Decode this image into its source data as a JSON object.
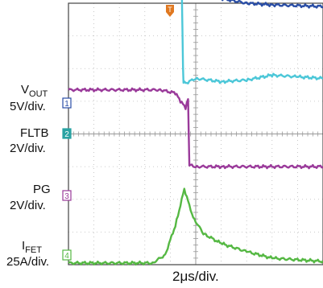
{
  "chart_data": {
    "type": "line",
    "xlabel": "2μs/div.",
    "grid": true,
    "x_divisions": 10,
    "y_divisions": 8,
    "trigger_marker": "T",
    "channels": [
      {
        "id": "1",
        "name_main": "V",
        "name_sub": "OUT",
        "scale": "5V/div.",
        "color": "#2a4ea6",
        "marker_color": "#2a4ea6",
        "x_div": [
          0,
          4.0,
          4.3,
          4.6,
          5.0,
          5.5,
          6.0,
          7.0,
          8.0,
          10.0
        ],
        "y_div": [
          7.4,
          7.35,
          6.6,
          5.8,
          5.0,
          4.4,
          4.15,
          4.0,
          3.95,
          3.9
        ]
      },
      {
        "id": "1b",
        "name_main": "",
        "name_sub": "",
        "scale": "",
        "color": "#4cc7d8",
        "marker_color": "#4cc7d8",
        "x_div": [
          0,
          4.0,
          4.3,
          4.45,
          4.5,
          4.52,
          4.6,
          5.0,
          6.0,
          7.0,
          8.0,
          9.0,
          10.0
        ],
        "y_div": [
          4.65,
          4.65,
          4.6,
          4.55,
          2.05,
          1.6,
          1.55,
          1.7,
          1.6,
          1.65,
          1.8,
          1.75,
          1.7
        ]
      },
      {
        "id": "2",
        "name_main": "FLTB",
        "name_sub": "",
        "scale": "2V/div.",
        "color": "#2aa3a3",
        "marker_color": "#2aa3a3",
        "x_div": [],
        "y_div": []
      },
      {
        "id": "3",
        "name_main": "PG",
        "name_sub": "",
        "scale": "2V/div.",
        "color": "#9a3a9a",
        "marker_color": "#9a3a9a",
        "x_div": [
          0,
          3.6,
          4.2,
          4.4,
          4.6,
          4.7,
          4.75,
          5.0,
          6.0,
          10.0
        ],
        "y_div": [
          1.35,
          1.35,
          1.25,
          1.0,
          0.8,
          1.05,
          -0.95,
          -1.0,
          -1.0,
          -1.0
        ]
      },
      {
        "id": "4",
        "name_main": "I",
        "name_sub": "FET",
        "scale": "25A/div.",
        "color": "#55b843",
        "marker_color": "#55b843",
        "x_div": [
          0,
          3.3,
          3.8,
          4.2,
          4.55,
          4.9,
          5.3,
          6.0,
          7.0,
          8.0,
          10.0
        ],
        "y_div": [
          -3.95,
          -3.95,
          -3.7,
          -2.8,
          -1.7,
          -2.55,
          -3.05,
          -3.35,
          -3.6,
          -3.8,
          -3.9
        ]
      }
    ]
  }
}
